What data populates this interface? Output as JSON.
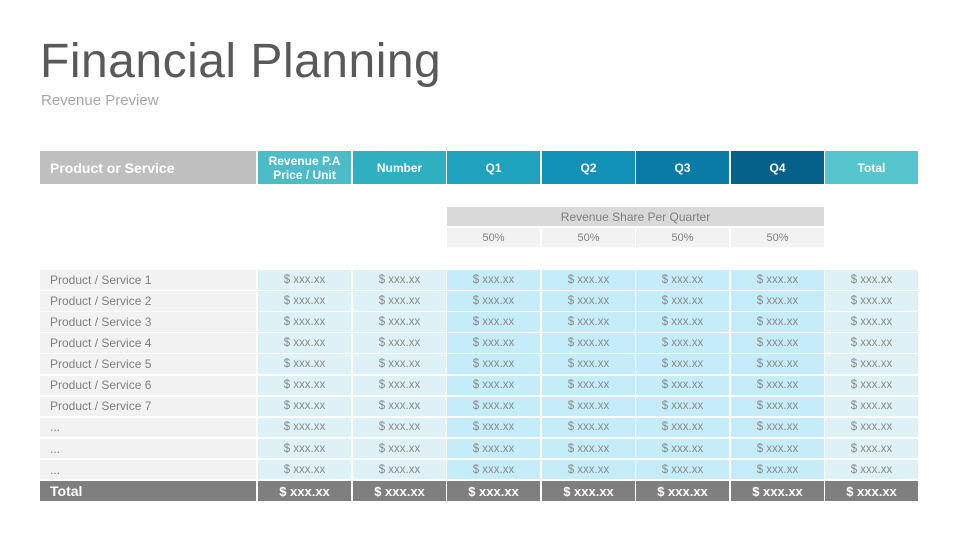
{
  "title": "Financial Planning",
  "subtitle": "Revenue Preview",
  "header": {
    "product": "Product or Service",
    "price": "Revenue P.A\nPrice / Unit",
    "number": "Number",
    "q1": "Q1",
    "q2": "Q2",
    "q3": "Q3",
    "q4": "Q4",
    "total": "Total"
  },
  "revenue_share": {
    "label": "Revenue Share Per Quarter",
    "values": [
      "50%",
      "50%",
      "50%",
      "50%"
    ]
  },
  "rows": [
    {
      "label": "Product / Service 1",
      "values": [
        "$ xxx.xx",
        "$ xxx.xx",
        "$ xxx.xx",
        "$ xxx.xx",
        "$ xxx.xx",
        "$ xxx.xx",
        "$ xxx.xx"
      ]
    },
    {
      "label": "Product / Service 2",
      "values": [
        "$ xxx.xx",
        "$ xxx.xx",
        "$ xxx.xx",
        "$ xxx.xx",
        "$ xxx.xx",
        "$ xxx.xx",
        "$ xxx.xx"
      ]
    },
    {
      "label": "Product / Service 3",
      "values": [
        "$ xxx.xx",
        "$ xxx.xx",
        "$ xxx.xx",
        "$ xxx.xx",
        "$ xxx.xx",
        "$ xxx.xx",
        "$ xxx.xx"
      ]
    },
    {
      "label": "Product / Service 4",
      "values": [
        "$ xxx.xx",
        "$ xxx.xx",
        "$ xxx.xx",
        "$ xxx.xx",
        "$ xxx.xx",
        "$ xxx.xx",
        "$ xxx.xx"
      ]
    },
    {
      "label": "Product / Service 5",
      "values": [
        "$ xxx.xx",
        "$ xxx.xx",
        "$ xxx.xx",
        "$ xxx.xx",
        "$ xxx.xx",
        "$ xxx.xx",
        "$ xxx.xx"
      ]
    },
    {
      "label": "Product / Service 6",
      "values": [
        "$ xxx.xx",
        "$ xxx.xx",
        "$ xxx.xx",
        "$ xxx.xx",
        "$ xxx.xx",
        "$ xxx.xx",
        "$ xxx.xx"
      ]
    },
    {
      "label": "Product / Service 7",
      "values": [
        "$ xxx.xx",
        "$ xxx.xx",
        "$ xxx.xx",
        "$ xxx.xx",
        "$ xxx.xx",
        "$ xxx.xx",
        "$ xxx.xx"
      ]
    },
    {
      "label": "...",
      "values": [
        "$ xxx.xx",
        "$ xxx.xx",
        "$ xxx.xx",
        "$ xxx.xx",
        "$ xxx.xx",
        "$ xxx.xx",
        "$ xxx.xx"
      ]
    },
    {
      "label": "...",
      "values": [
        "$ xxx.xx",
        "$ xxx.xx",
        "$ xxx.xx",
        "$ xxx.xx",
        "$ xxx.xx",
        "$ xxx.xx",
        "$ xxx.xx"
      ]
    },
    {
      "label": "...",
      "values": [
        "$ xxx.xx",
        "$ xxx.xx",
        "$ xxx.xx",
        "$ xxx.xx",
        "$ xxx.xx",
        "$ xxx.xx",
        "$ xxx.xx"
      ]
    }
  ],
  "total_row": {
    "label": "Total",
    "values": [
      "$ xxx.xx",
      "$ xxx.xx",
      "$ xxx.xx",
      "$ xxx.xx",
      "$ xxx.xx",
      "$ xxx.xx",
      "$ xxx.xx"
    ]
  },
  "colors": {
    "header_product": "#bfbfbf",
    "header_price": "#4bbcc8",
    "header_number": "#2fafc0",
    "header_q1": "#1ea2bd",
    "header_q2": "#1191b8",
    "header_q3": "#0a7aa6",
    "header_q4": "#06618a",
    "header_total": "#56c5cd"
  }
}
